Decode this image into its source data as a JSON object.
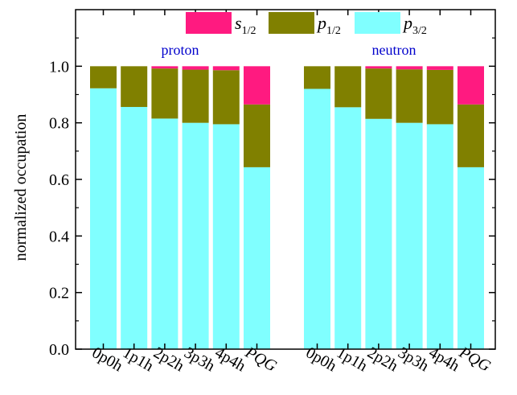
{
  "chart_data": {
    "type": "bar",
    "stacked": true,
    "ylabel": "normalized occupation",
    "ylim": [
      0,
      1.2
    ],
    "yticks": [
      {
        "value": 0.0,
        "label": "0.0"
      },
      {
        "value": 0.2,
        "label": "0.2"
      },
      {
        "value": 0.4,
        "label": "0.4"
      },
      {
        "value": 0.6,
        "label": "0.6"
      },
      {
        "value": 0.8,
        "label": "0.8"
      },
      {
        "value": 1.0,
        "label": "1.0"
      }
    ],
    "legend": {
      "placement": "top",
      "entries": [
        {
          "key": "s",
          "base": "s",
          "sub": "1/2",
          "color": "#ff1a80"
        },
        {
          "key": "p1",
          "base": "p",
          "sub": "1/2",
          "color": "#808000"
        },
        {
          "key": "p3",
          "base": "p",
          "sub": "3/2",
          "color": "#80ffff"
        }
      ]
    },
    "groups": [
      {
        "label": "proton",
        "label_color": "#0000cc",
        "categories": [
          "0p0h",
          "1p1h",
          "2p2h",
          "3p3h",
          "4p4h",
          "PQG"
        ],
        "series": [
          {
            "key": "p3",
            "values": [
              0.922,
              0.856,
              0.815,
              0.8,
              0.795,
              0.643
            ]
          },
          {
            "key": "p1",
            "values": [
              0.078,
              0.144,
              0.177,
              0.188,
              0.191,
              0.222
            ]
          },
          {
            "key": "s",
            "values": [
              0.0,
              0.0,
              0.008,
              0.012,
              0.014,
              0.135
            ]
          }
        ]
      },
      {
        "label": "neutron",
        "label_color": "#0000cc",
        "categories": [
          "0p0h",
          "1p1h",
          "2p2h",
          "3p3h",
          "4p4h",
          "PQG"
        ],
        "series": [
          {
            "key": "p3",
            "values": [
              0.92,
              0.855,
              0.814,
              0.8,
              0.795,
              0.643
            ]
          },
          {
            "key": "p1",
            "values": [
              0.08,
              0.145,
              0.178,
              0.189,
              0.192,
              0.222
            ]
          },
          {
            "key": "s",
            "values": [
              0.0,
              0.0,
              0.008,
              0.011,
              0.013,
              0.135
            ]
          }
        ]
      }
    ]
  }
}
